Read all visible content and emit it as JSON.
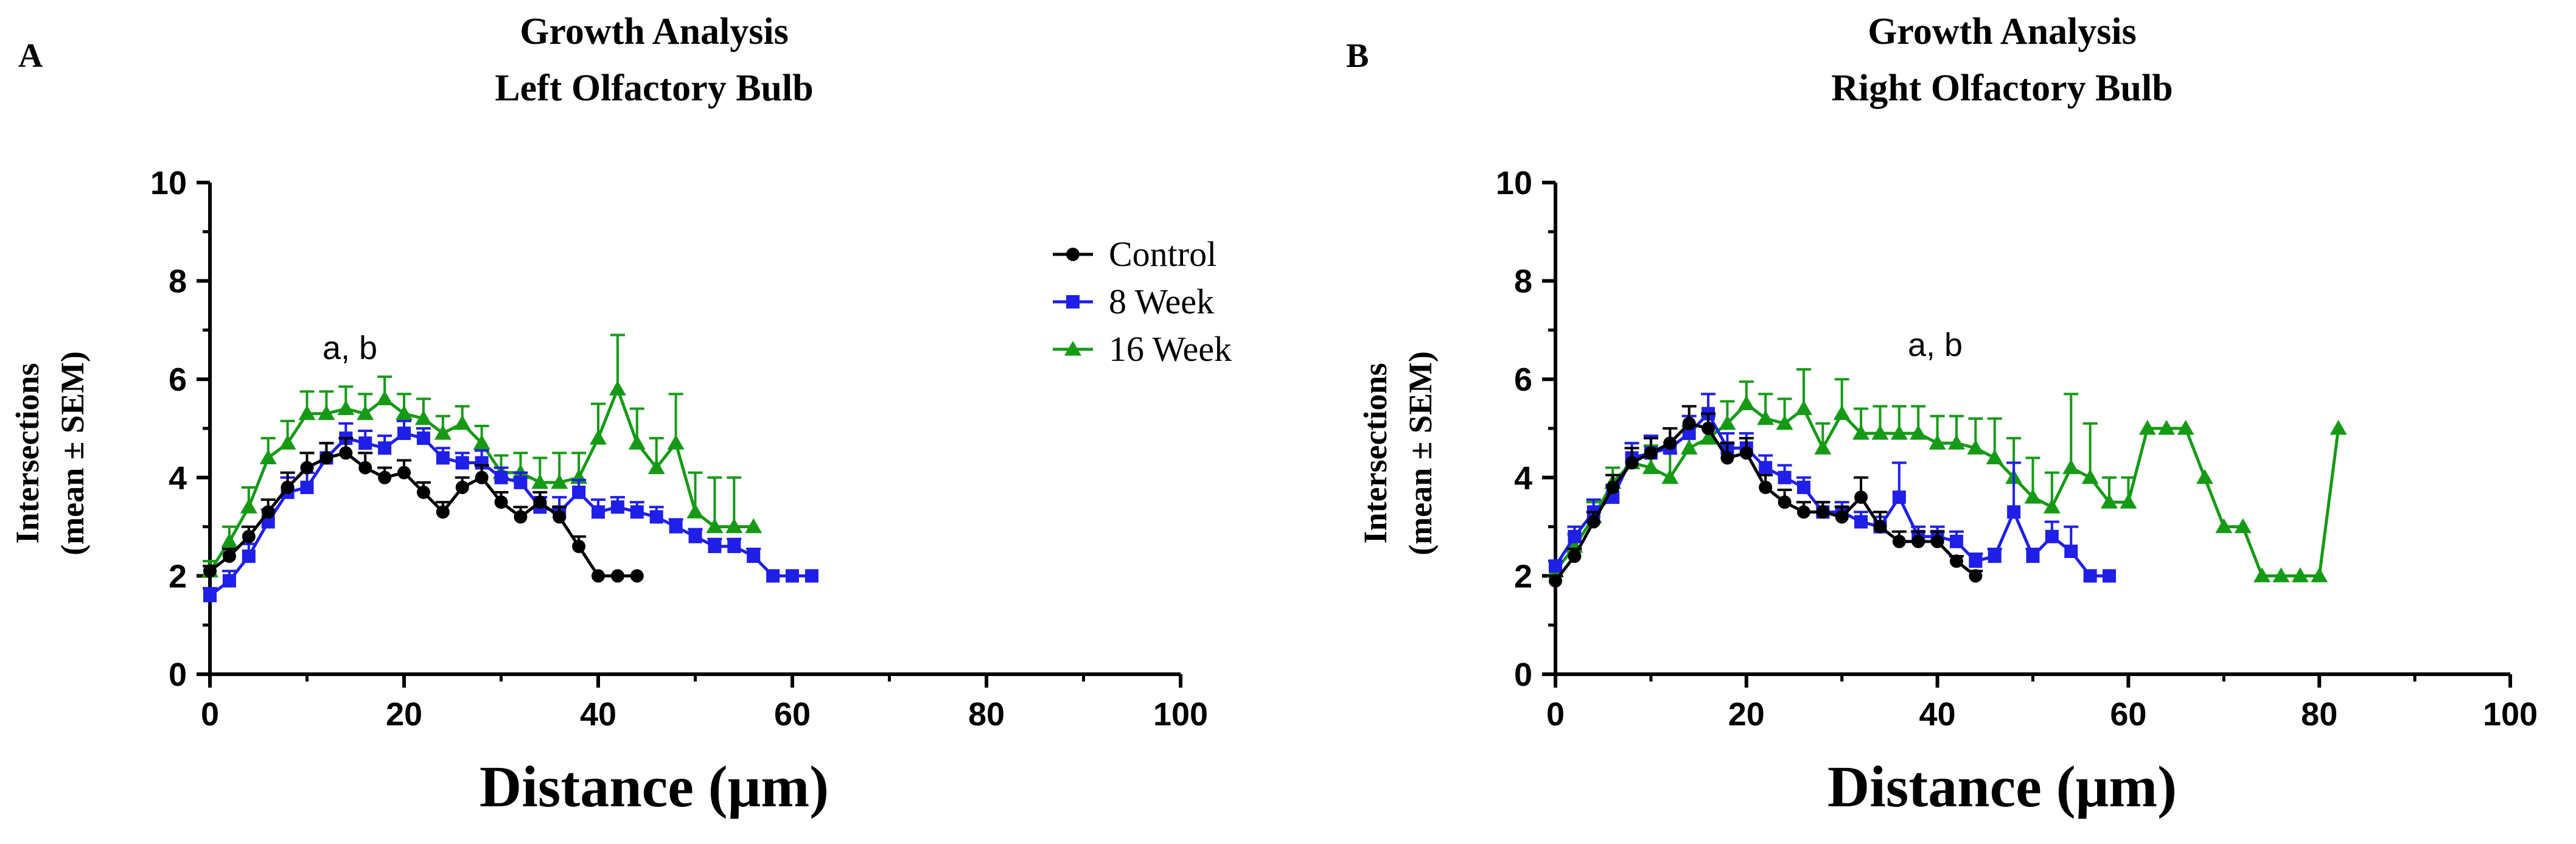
{
  "colors": {
    "control": "#000000",
    "week8": "#1f1fe8",
    "week16": "#169a16",
    "axis": "#000000"
  },
  "chart_data": [
    {
      "panel_label": "A",
      "type": "line",
      "title": "Growth Analysis",
      "subtitle": "Left Olfactory Bulb",
      "xlabel": "Distance (μm)",
      "ylabel": "Intersections",
      "ylabel2": "(mean ± SEM)",
      "xlim": [
        0,
        100
      ],
      "ylim": [
        0,
        10
      ],
      "xticks": [
        "0",
        "20",
        "40",
        "60",
        "80",
        "100"
      ],
      "yticks": [
        "0",
        "2",
        "4",
        "6",
        "8",
        "10"
      ],
      "grid": false,
      "legend_position": "top-right",
      "annotation": "a, b",
      "annotation_at": [
        16,
        6.6
      ],
      "series": [
        {
          "name": "Control",
          "key": "control",
          "marker": "circle",
          "x": [
            0,
            2,
            4,
            6,
            8,
            10,
            12,
            14,
            16,
            18,
            20,
            22,
            24,
            26,
            28,
            30,
            32,
            34,
            36,
            38,
            40,
            42,
            44
          ],
          "y": [
            2.1,
            2.4,
            2.8,
            3.3,
            3.8,
            4.2,
            4.4,
            4.5,
            4.2,
            4.0,
            4.1,
            3.7,
            3.3,
            3.8,
            4.0,
            3.5,
            3.2,
            3.5,
            3.2,
            2.6,
            2.0,
            2.0,
            2.0
          ],
          "err": [
            0.1,
            0.15,
            0.2,
            0.25,
            0.3,
            0.3,
            0.3,
            0.3,
            0.3,
            0.2,
            0.25,
            0.2,
            0.2,
            0.2,
            0.25,
            0.2,
            0.2,
            0.2,
            0.2,
            0.2,
            0,
            0,
            0
          ]
        },
        {
          "name": "8 Week",
          "key": "week8",
          "marker": "square",
          "x": [
            0,
            2,
            4,
            6,
            8,
            10,
            12,
            14,
            16,
            18,
            20,
            22,
            24,
            26,
            28,
            30,
            32,
            34,
            36,
            38,
            40,
            42,
            44,
            46,
            48,
            50,
            52,
            54,
            56,
            58,
            60,
            62
          ],
          "y": [
            1.6,
            1.9,
            2.4,
            3.1,
            3.7,
            3.8,
            4.4,
            4.8,
            4.7,
            4.6,
            4.9,
            4.8,
            4.4,
            4.3,
            4.3,
            4.0,
            3.9,
            3.4,
            3.3,
            3.7,
            3.3,
            3.4,
            3.3,
            3.2,
            3.0,
            2.8,
            2.6,
            2.6,
            2.4,
            2.0,
            2.0,
            2.0
          ],
          "err": [
            0.15,
            0.2,
            0.25,
            0.25,
            0.3,
            0.3,
            0.3,
            0.3,
            0.25,
            0.25,
            0.25,
            0.2,
            0.2,
            0.2,
            0.25,
            0.2,
            0.2,
            0.2,
            0.3,
            0.25,
            0.25,
            0.2,
            0.2,
            0.2,
            0.15,
            0.15,
            0.15,
            0.15,
            0.15,
            0,
            0,
            0
          ]
        },
        {
          "name": "16 Week",
          "key": "week16",
          "marker": "triangle",
          "x": [
            0,
            2,
            4,
            6,
            8,
            10,
            12,
            14,
            16,
            18,
            20,
            22,
            24,
            26,
            28,
            30,
            32,
            34,
            36,
            38,
            40,
            42,
            44,
            46,
            48,
            50,
            52,
            54,
            56
          ],
          "y": [
            2.1,
            2.7,
            3.4,
            4.4,
            4.7,
            5.3,
            5.3,
            5.4,
            5.3,
            5.6,
            5.3,
            5.2,
            4.9,
            5.1,
            4.7,
            4.1,
            4.1,
            3.9,
            3.9,
            4.0,
            4.8,
            5.8,
            4.7,
            4.2,
            4.7,
            3.3,
            3.0,
            3.0,
            3.0
          ],
          "err": [
            0.2,
            0.3,
            0.4,
            0.4,
            0.45,
            0.45,
            0.45,
            0.45,
            0.4,
            0.45,
            0.4,
            0.4,
            0.35,
            0.35,
            0.35,
            0.35,
            0.4,
            0.5,
            0.6,
            0.5,
            0.7,
            1.1,
            0.7,
            0.6,
            1.0,
            0.8,
            1.0,
            1.0,
            0
          ]
        }
      ]
    },
    {
      "panel_label": "B",
      "type": "line",
      "title": "Growth Analysis",
      "subtitle": "Right Olfactory Bulb",
      "xlabel": "Distance (μm)",
      "ylabel": "Intersections",
      "ylabel2": "(mean ± SEM)",
      "xlim": [
        0,
        100
      ],
      "ylim": [
        0,
        10
      ],
      "xticks": [
        "0",
        "20",
        "40",
        "60",
        "80",
        "100"
      ],
      "yticks": [
        "0",
        "2",
        "4",
        "6",
        "8",
        "10"
      ],
      "grid": false,
      "annotation": "a, b",
      "annotation_at": [
        36,
        6.7
      ],
      "series": [
        {
          "name": "Control",
          "key": "control",
          "marker": "circle",
          "x": [
            0,
            2,
            4,
            6,
            8,
            10,
            12,
            14,
            16,
            18,
            20,
            22,
            24,
            26,
            28,
            30,
            32,
            34,
            36,
            38,
            40,
            42,
            44
          ],
          "y": [
            1.9,
            2.4,
            3.1,
            3.8,
            4.3,
            4.5,
            4.7,
            5.1,
            5.0,
            4.4,
            4.5,
            3.8,
            3.5,
            3.3,
            3.3,
            3.2,
            3.6,
            3.0,
            2.7,
            2.7,
            2.7,
            2.3,
            2.0
          ],
          "err": [
            0.1,
            0.15,
            0.2,
            0.25,
            0.3,
            0.3,
            0.3,
            0.35,
            0.3,
            0.3,
            0.3,
            0.25,
            0.25,
            0.2,
            0.2,
            0.2,
            0.4,
            0.3,
            0.2,
            0.2,
            0.2,
            0.1,
            0.1
          ]
        },
        {
          "name": "8 Week",
          "key": "week8",
          "marker": "square",
          "x": [
            0,
            2,
            4,
            6,
            8,
            10,
            12,
            14,
            16,
            18,
            20,
            22,
            24,
            26,
            28,
            30,
            32,
            34,
            36,
            38,
            40,
            42,
            44,
            46,
            48,
            50,
            52,
            54,
            56,
            58
          ],
          "y": [
            2.2,
            2.8,
            3.3,
            3.6,
            4.4,
            4.5,
            4.6,
            4.9,
            5.3,
            4.6,
            4.6,
            4.2,
            4.0,
            3.8,
            3.3,
            3.3,
            3.1,
            3.0,
            3.6,
            2.8,
            2.8,
            2.7,
            2.3,
            2.4,
            3.3,
            2.4,
            2.8,
            2.5,
            2.0,
            2.0
          ],
          "err": [
            0.1,
            0.2,
            0.25,
            0.25,
            0.3,
            0.35,
            0.4,
            0.35,
            0.4,
            0.3,
            0.3,
            0.25,
            0.25,
            0.2,
            0.2,
            0.2,
            0.2,
            0.2,
            0.7,
            0.2,
            0.2,
            0.2,
            0.15,
            0.15,
            1.0,
            0.15,
            0.3,
            0.5,
            0,
            0
          ]
        },
        {
          "name": "16 Week",
          "key": "week16",
          "marker": "triangle",
          "x": [
            0,
            2,
            4,
            6,
            8,
            10,
            12,
            14,
            16,
            18,
            20,
            22,
            24,
            26,
            28,
            30,
            32,
            34,
            36,
            38,
            40,
            42,
            44,
            46,
            48,
            50,
            52,
            54,
            56,
            58,
            60,
            62,
            64,
            66,
            68,
            70,
            72,
            74,
            76,
            78,
            80,
            82
          ],
          "y": [
            2.1,
            2.6,
            3.2,
            3.9,
            4.3,
            4.2,
            4.0,
            4.6,
            4.8,
            5.1,
            5.5,
            5.2,
            5.1,
            5.4,
            4.6,
            5.3,
            4.9,
            4.9,
            4.9,
            4.9,
            4.7,
            4.7,
            4.6,
            4.4,
            4.0,
            3.6,
            3.4,
            4.2,
            4.0,
            3.5,
            3.5,
            5.0,
            5.0,
            5.0,
            4.0,
            3.0,
            3.0,
            2.0,
            2.0,
            2.0,
            2.0,
            5.0
          ],
          "err": [
            0.2,
            0.25,
            0.3,
            0.3,
            0.4,
            0.45,
            0.5,
            0.45,
            0.45,
            0.45,
            0.45,
            0.5,
            0.5,
            0.8,
            0.5,
            0.7,
            0.5,
            0.55,
            0.55,
            0.55,
            0.55,
            0.55,
            0.6,
            0.8,
            0.8,
            0.8,
            0.7,
            1.5,
            1.1,
            0.5,
            0.5,
            0,
            0,
            0,
            0,
            0,
            0,
            0,
            0,
            0,
            0,
            0
          ]
        }
      ]
    }
  ]
}
